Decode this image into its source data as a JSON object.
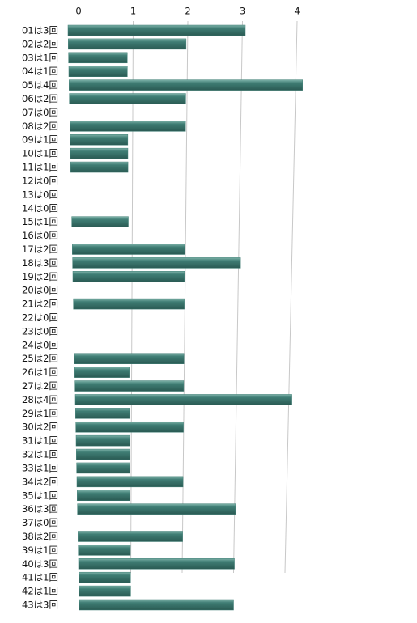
{
  "chart_data": {
    "type": "bar",
    "orientation": "horizontal",
    "categories": [
      "01は3回",
      "02は2回",
      "03は1回",
      "04は1回",
      "05は4回",
      "06は2回",
      "07は0回",
      "08は2回",
      "09は1回",
      "10は1回",
      "11は1回",
      "12は0回",
      "13は0回",
      "14は0回",
      "15は1回",
      "16は0回",
      "17は2回",
      "18は3回",
      "19は2回",
      "20は0回",
      "21は2回",
      "22は0回",
      "23は0回",
      "24は0回",
      "25は2回",
      "26は1回",
      "27は2回",
      "28は4回",
      "29は1回",
      "30は2回",
      "31は1回",
      "32は1回",
      "33は1回",
      "34は2回",
      "35は1回",
      "36は3回",
      "37は0回",
      "38は2回",
      "39は1回",
      "40は3回",
      "41は1回",
      "42は1回",
      "43は3回"
    ],
    "values": [
      3,
      2,
      1,
      1,
      4,
      2,
      0,
      2,
      1,
      1,
      1,
      0,
      0,
      0,
      1,
      0,
      2,
      3,
      2,
      0,
      2,
      0,
      0,
      0,
      2,
      1,
      2,
      4,
      1,
      2,
      1,
      1,
      1,
      2,
      1,
      3,
      0,
      2,
      1,
      3,
      1,
      1,
      3
    ],
    "color": "#3f7d74",
    "xlim": [
      0,
      4
    ],
    "xticks": [
      0,
      1,
      2,
      3,
      4
    ],
    "grid": true
  }
}
